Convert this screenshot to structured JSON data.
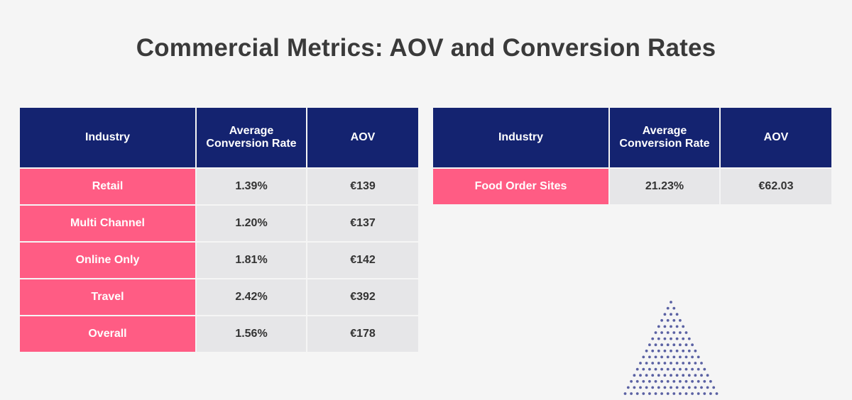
{
  "title": "Commercial Metrics: AOV and Conversion Rates",
  "colors": {
    "header_bg": "#142370",
    "industry_bg": "#ff5c84",
    "value_bg": "#e6e6e8",
    "page_bg": "#f5f5f5",
    "dots": "#5a61a3"
  },
  "tables": [
    {
      "headers": [
        "Industry",
        "Average Conversion Rate",
        "AOV"
      ],
      "rows": [
        {
          "industry": "Retail",
          "conversion_rate": "1.39%",
          "aov": "€139"
        },
        {
          "industry": "Multi Channel",
          "conversion_rate": "1.20%",
          "aov": "€137"
        },
        {
          "industry": "Online Only",
          "conversion_rate": "1.81%",
          "aov": "€142"
        },
        {
          "industry": "Travel",
          "conversion_rate": "2.42%",
          "aov": "€392"
        },
        {
          "industry": "Overall",
          "conversion_rate": "1.56%",
          "aov": "€178"
        }
      ]
    },
    {
      "headers": [
        "Industry",
        "Average Conversion Rate",
        "AOV"
      ],
      "rows": [
        {
          "industry": "Food Order Sites",
          "conversion_rate": "21.23%",
          "aov": "€62.03"
        }
      ]
    }
  ]
}
